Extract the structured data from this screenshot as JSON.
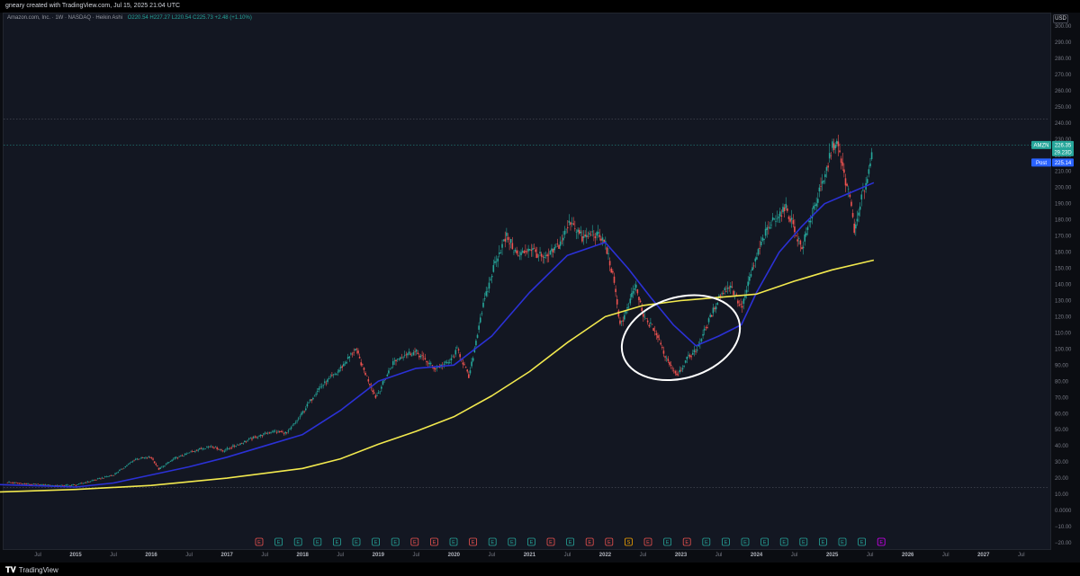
{
  "header": {
    "credit": "gneary created with TradingView.com, Jul 15, 2025 21:04 UTC"
  },
  "legend": {
    "symbol": "Amazon.com, Inc. · 1W · NASDAQ · Heikin Ashi",
    "values": "O220.54 H227.27 L220.54 C225.73 +2.48 (+1.10%)"
  },
  "price_axis": {
    "currency": "USD"
  },
  "badges": {
    "ticker": {
      "label": "AMZN",
      "value": "226.35",
      "sub": "29.23D"
    },
    "post": {
      "label": "Post",
      "value": "225.14"
    }
  },
  "colors": {
    "bull": "#26a69a",
    "bear": "#ef5350",
    "ma_fast": "#2b31d6",
    "ma_slow": "#f2e94e",
    "ellipse": "#ffffff",
    "earnings": "#26a69a",
    "dividend": "#d500f9"
  },
  "earnings_markers": [
    {
      "label": "E",
      "color": "#ef5350"
    },
    {
      "label": "E",
      "color": "#26a69a"
    },
    {
      "label": "E",
      "color": "#26a69a"
    },
    {
      "label": "E",
      "color": "#26a69a"
    },
    {
      "label": "E",
      "color": "#26a69a"
    },
    {
      "label": "E",
      "color": "#26a69a"
    },
    {
      "label": "E",
      "color": "#26a69a"
    },
    {
      "label": "E",
      "color": "#26a69a"
    },
    {
      "label": "E",
      "color": "#ef5350"
    },
    {
      "label": "E",
      "color": "#ef5350"
    },
    {
      "label": "E",
      "color": "#26a69a"
    },
    {
      "label": "E",
      "color": "#ef5350"
    },
    {
      "label": "E",
      "color": "#26a69a"
    },
    {
      "label": "E",
      "color": "#26a69a"
    },
    {
      "label": "E",
      "color": "#26a69a"
    },
    {
      "label": "E",
      "color": "#ef5350"
    },
    {
      "label": "E",
      "color": "#26a69a"
    },
    {
      "label": "E",
      "color": "#ef5350"
    },
    {
      "label": "E",
      "color": "#ef5350"
    },
    {
      "label": "S",
      "color": "#f7a600"
    },
    {
      "label": "E",
      "color": "#ef5350"
    },
    {
      "label": "E",
      "color": "#26a69a"
    },
    {
      "label": "E",
      "color": "#ef5350"
    },
    {
      "label": "E",
      "color": "#26a69a"
    },
    {
      "label": "E",
      "color": "#26a69a"
    },
    {
      "label": "E",
      "color": "#26a69a"
    },
    {
      "label": "E",
      "color": "#26a69a"
    },
    {
      "label": "E",
      "color": "#26a69a"
    },
    {
      "label": "E",
      "color": "#26a69a"
    },
    {
      "label": "E",
      "color": "#26a69a"
    },
    {
      "label": "E",
      "color": "#26a69a"
    },
    {
      "label": "E",
      "color": "#26a69a"
    },
    {
      "label": "E",
      "color": "#d500f9"
    }
  ],
  "footer": {
    "brand": "TradingView"
  },
  "chart_data": {
    "type": "candlestick",
    "title": "Amazon.com, Inc. · 1W · NASDAQ · Heikin Ashi",
    "y_unit": "USD",
    "ylim": [
      -20,
      300
    ],
    "y_ticks": [
      "300.00",
      "290.00",
      "280.00",
      "270.00",
      "260.00",
      "250.00",
      "240.00",
      "230.00",
      "220.00",
      "210.00",
      "200.00",
      "190.00",
      "180.00",
      "170.00",
      "160.00",
      "150.00",
      "140.00",
      "130.00",
      "120.00",
      "110.00",
      "100.00",
      "90.00",
      "80.00",
      "70.00",
      "60.00",
      "50.00",
      "40.00",
      "30.00",
      "20.00",
      "10.00",
      "0.0000",
      "−10.00",
      "−20.00"
    ],
    "x_ticks": [
      {
        "label": "Jul",
        "t": 2014.5
      },
      {
        "label": "2015",
        "t": 2015.0
      },
      {
        "label": "Jul",
        "t": 2015.5
      },
      {
        "label": "2016",
        "t": 2016.0
      },
      {
        "label": "Jul",
        "t": 2016.5
      },
      {
        "label": "2017",
        "t": 2017.0
      },
      {
        "label": "Jul",
        "t": 2017.5
      },
      {
        "label": "2018",
        "t": 2018.0
      },
      {
        "label": "Jul",
        "t": 2018.5
      },
      {
        "label": "2019",
        "t": 2019.0
      },
      {
        "label": "Jul",
        "t": 2019.5
      },
      {
        "label": "2020",
        "t": 2020.0
      },
      {
        "label": "Jul",
        "t": 2020.5
      },
      {
        "label": "2021",
        "t": 2021.0
      },
      {
        "label": "Jul",
        "t": 2021.5
      },
      {
        "label": "2022",
        "t": 2022.0
      },
      {
        "label": "Jul",
        "t": 2022.5
      },
      {
        "label": "2023",
        "t": 2023.0
      },
      {
        "label": "Jul",
        "t": 2023.5
      },
      {
        "label": "2024",
        "t": 2024.0
      },
      {
        "label": "Jul",
        "t": 2024.5
      },
      {
        "label": "2025",
        "t": 2025.0
      },
      {
        "label": "Jul",
        "t": 2025.5
      },
      {
        "label": "2026",
        "t": 2026.0
      },
      {
        "label": "Jul",
        "t": 2026.5
      },
      {
        "label": "2027",
        "t": 2027.0
      },
      {
        "label": "Jul",
        "t": 2027.5
      }
    ],
    "horizontal_lines": [
      242.5,
      226.35,
      14.2
    ],
    "price_path": [
      [
        2014.1,
        17.5
      ],
      [
        2014.4,
        16.2
      ],
      [
        2014.8,
        15.4
      ],
      [
        2015.0,
        15.8
      ],
      [
        2015.3,
        19.5
      ],
      [
        2015.5,
        22.0
      ],
      [
        2015.8,
        32.0
      ],
      [
        2016.0,
        33.0
      ],
      [
        2016.1,
        25.5
      ],
      [
        2016.3,
        32.0
      ],
      [
        2016.6,
        37.5
      ],
      [
        2016.8,
        40.0
      ],
      [
        2016.95,
        37.0
      ],
      [
        2017.3,
        44.0
      ],
      [
        2017.6,
        49.0
      ],
      [
        2017.8,
        48.0
      ],
      [
        2017.95,
        57.0
      ],
      [
        2018.2,
        75.0
      ],
      [
        2018.45,
        85.0
      ],
      [
        2018.7,
        100.0
      ],
      [
        2018.8,
        88.0
      ],
      [
        2018.97,
        70.0
      ],
      [
        2019.2,
        92.0
      ],
      [
        2019.35,
        97.0
      ],
      [
        2019.5,
        98.0
      ],
      [
        2019.75,
        88.0
      ],
      [
        2019.95,
        92.0
      ],
      [
        2020.05,
        100.0
      ],
      [
        2020.2,
        82.0
      ],
      [
        2020.35,
        120.0
      ],
      [
        2020.55,
        155.0
      ],
      [
        2020.7,
        170.0
      ],
      [
        2020.85,
        157.0
      ],
      [
        2021.0,
        163.0
      ],
      [
        2021.2,
        155.0
      ],
      [
        2021.4,
        165.0
      ],
      [
        2021.55,
        180.0
      ],
      [
        2021.7,
        168.0
      ],
      [
        2021.85,
        172.0
      ],
      [
        2022.0,
        166.0
      ],
      [
        2022.1,
        145.0
      ],
      [
        2022.2,
        115.0
      ],
      [
        2022.3,
        125.0
      ],
      [
        2022.4,
        140.0
      ],
      [
        2022.5,
        120.0
      ],
      [
        2022.65,
        112.0
      ],
      [
        2022.8,
        95.0
      ],
      [
        2022.95,
        84.0
      ],
      [
        2023.1,
        95.0
      ],
      [
        2023.2,
        99.0
      ],
      [
        2023.35,
        115.0
      ],
      [
        2023.5,
        132.0
      ],
      [
        2023.65,
        140.0
      ],
      [
        2023.8,
        125.0
      ],
      [
        2023.95,
        150.0
      ],
      [
        2024.1,
        170.0
      ],
      [
        2024.25,
        182.0
      ],
      [
        2024.4,
        187.0
      ],
      [
        2024.6,
        162.0
      ],
      [
        2024.75,
        187.0
      ],
      [
        2024.9,
        205.0
      ],
      [
        2024.98,
        222.0
      ],
      [
        2025.05,
        230.0
      ],
      [
        2025.12,
        215.0
      ],
      [
        2025.25,
        190.0
      ],
      [
        2025.3,
        172.0
      ],
      [
        2025.4,
        195.0
      ],
      [
        2025.5,
        214.0
      ],
      [
        2025.54,
        226.0
      ]
    ],
    "ma_fast": [
      [
        2014.0,
        16.0
      ],
      [
        2014.5,
        15.3
      ],
      [
        2015.0,
        14.5
      ],
      [
        2015.5,
        17.0
      ],
      [
        2016.0,
        22.0
      ],
      [
        2016.5,
        27.0
      ],
      [
        2017.0,
        33.0
      ],
      [
        2017.5,
        40.0
      ],
      [
        2018.0,
        47.0
      ],
      [
        2018.5,
        62.0
      ],
      [
        2019.0,
        80.0
      ],
      [
        2019.5,
        88.0
      ],
      [
        2020.0,
        90.0
      ],
      [
        2020.5,
        108.0
      ],
      [
        2021.0,
        135.0
      ],
      [
        2021.5,
        158.0
      ],
      [
        2022.0,
        166.0
      ],
      [
        2022.3,
        150.0
      ],
      [
        2022.6,
        132.0
      ],
      [
        2022.9,
        115.0
      ],
      [
        2023.2,
        102.0
      ],
      [
        2023.5,
        108.0
      ],
      [
        2023.8,
        115.0
      ],
      [
        2024.0,
        135.0
      ],
      [
        2024.3,
        160.0
      ],
      [
        2024.6,
        176.0
      ],
      [
        2024.9,
        190.0
      ],
      [
        2025.2,
        196.0
      ],
      [
        2025.55,
        203.0
      ]
    ],
    "ma_slow": [
      [
        2014.0,
        11.5
      ],
      [
        2015.0,
        13.0
      ],
      [
        2016.0,
        15.5
      ],
      [
        2017.0,
        20.0
      ],
      [
        2017.5,
        23.0
      ],
      [
        2018.0,
        26.0
      ],
      [
        2018.5,
        32.0
      ],
      [
        2019.0,
        41.0
      ],
      [
        2019.5,
        49.0
      ],
      [
        2020.0,
        58.0
      ],
      [
        2020.5,
        71.0
      ],
      [
        2021.0,
        86.0
      ],
      [
        2021.5,
        104.0
      ],
      [
        2022.0,
        120.0
      ],
      [
        2022.5,
        127.0
      ],
      [
        2023.0,
        130.0
      ],
      [
        2023.5,
        132.0
      ],
      [
        2024.0,
        134.0
      ],
      [
        2024.5,
        142.0
      ],
      [
        2025.0,
        149.0
      ],
      [
        2025.55,
        155.0
      ]
    ],
    "annotation": {
      "shape": "ellipse",
      "center": [
        2023.0,
        107.0
      ],
      "rx_years": 0.8,
      "ry_value": 25
    }
  }
}
